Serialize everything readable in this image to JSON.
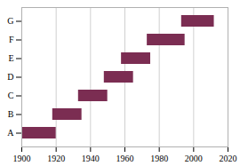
{
  "chart_data": {
    "type": "bar",
    "orientation": "horizontal",
    "categories": [
      "A",
      "B",
      "C",
      "D",
      "E",
      "F",
      "G"
    ],
    "values": [
      [
        1900,
        1920
      ],
      [
        1918,
        1935
      ],
      [
        1933,
        1950
      ],
      [
        1948,
        1965
      ],
      [
        1958,
        1975
      ],
      [
        1973,
        1995
      ],
      [
        1993,
        2012
      ]
    ],
    "color": "#7B2D52",
    "xlim": [
      1900,
      2020
    ],
    "xticks": [
      1900,
      1920,
      1940,
      1960,
      1980,
      2000,
      2020
    ],
    "grid": true
  }
}
